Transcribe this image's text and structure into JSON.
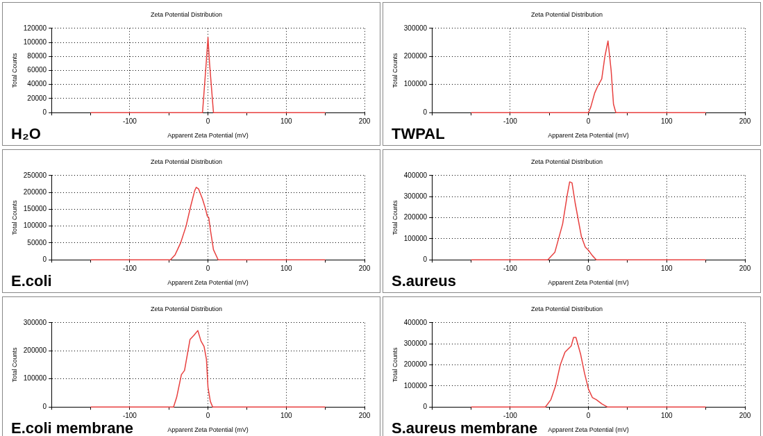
{
  "chart_data": [
    {
      "type": "line",
      "title": "Zeta Potential Distribution",
      "xlabel": "Apparent Zeta Potential (mV)",
      "ylabel": "Total Counts",
      "annotations": [
        "H₂O"
      ],
      "color": "#e8403f",
      "marker": "none",
      "grid": true,
      "x": [
        -150,
        -7,
        -2,
        0,
        2,
        7,
        150
      ],
      "values": [
        0,
        0,
        75000,
        107000,
        70000,
        0,
        0
      ],
      "xlim": [
        -200,
        200
      ],
      "xticks": [
        {
          "value": -200,
          "label": null
        },
        {
          "value": -150,
          "label": null
        },
        -100,
        {
          "value": -50,
          "label": null
        },
        0,
        {
          "value": 50,
          "label": null
        },
        100,
        {
          "value": 150,
          "label": null
        },
        200
      ],
      "ylim": [
        0,
        120000
      ],
      "yticks": [
        0,
        20000,
        40000,
        60000,
        80000,
        100000,
        120000
      ]
    },
    {
      "type": "line",
      "title": "Zeta Potential Distribution",
      "xlabel": "Apparent Zeta Potential (mV)",
      "ylabel": "Total Counts",
      "annotations": [
        "TWPAL"
      ],
      "color": "#e8403f",
      "marker": "none",
      "grid": true,
      "x": [
        -150,
        0,
        3,
        8,
        12,
        17,
        21,
        25,
        29,
        32,
        35,
        150
      ],
      "values": [
        0,
        0,
        20000,
        70000,
        95000,
        120000,
        200000,
        255000,
        150000,
        30000,
        0,
        0
      ],
      "xlim": [
        -200,
        200
      ],
      "xticks": [
        {
          "value": -200,
          "label": null
        },
        {
          "value": -150,
          "label": null
        },
        -100,
        {
          "value": -50,
          "label": null
        },
        0,
        {
          "value": 50,
          "label": null
        },
        100,
        {
          "value": 150,
          "label": null
        },
        200
      ],
      "ylim": [
        0,
        300000
      ],
      "yticks": [
        0,
        100000,
        200000,
        300000
      ]
    },
    {
      "type": "line",
      "title": "Zeta Potential Distribution",
      "xlabel": "Apparent Zeta Potential (mV)",
      "ylabel": "Total Counts",
      "annotations": [
        "E.coli"
      ],
      "color": "#e8403f",
      "marker": "none",
      "grid": true,
      "x": [
        -150,
        -48,
        -42,
        -35,
        -28,
        -22,
        -17,
        -15,
        -12,
        -7,
        -3,
        -1,
        1,
        3,
        7,
        13,
        150
      ],
      "values": [
        0,
        0,
        15000,
        50000,
        100000,
        160000,
        205000,
        215000,
        210000,
        180000,
        150000,
        130000,
        125000,
        90000,
        30000,
        0,
        0
      ],
      "xlim": [
        -200,
        200
      ],
      "xticks": [
        {
          "value": -200,
          "label": null
        },
        {
          "value": -150,
          "label": null
        },
        -100,
        {
          "value": -50,
          "label": null
        },
        0,
        {
          "value": 50,
          "label": null
        },
        100,
        {
          "value": 150,
          "label": null
        },
        200
      ],
      "ylim": [
        0,
        250000
      ],
      "yticks": [
        0,
        50000,
        100000,
        150000,
        200000,
        250000
      ]
    },
    {
      "type": "line",
      "title": "Zeta Potential Distribution",
      "xlabel": "Apparent Zeta Potential (mV)",
      "ylabel": "Total Counts",
      "annotations": [
        "S.aureus"
      ],
      "color": "#e8403f",
      "marker": "none",
      "grid": true,
      "x": [
        -150,
        -52,
        -43,
        -33,
        -27,
        -24,
        -21,
        -17,
        -9,
        -4,
        0,
        5,
        10,
        150
      ],
      "values": [
        0,
        0,
        35000,
        170000,
        310000,
        370000,
        365000,
        270000,
        110000,
        60000,
        45000,
        20000,
        0,
        0
      ],
      "xlim": [
        -200,
        200
      ],
      "xticks": [
        {
          "value": -200,
          "label": null
        },
        {
          "value": -150,
          "label": null
        },
        -100,
        {
          "value": -50,
          "label": null
        },
        0,
        {
          "value": 50,
          "label": null
        },
        100,
        {
          "value": 150,
          "label": null
        },
        200
      ],
      "ylim": [
        0,
        400000
      ],
      "yticks": [
        0,
        100000,
        200000,
        300000,
        400000
      ]
    },
    {
      "type": "line",
      "title": "Zeta Potential Distribution",
      "xlabel": "Apparent Zeta Potential (mV)",
      "ylabel": "Total Counts",
      "annotations": [
        "E.coli membrane"
      ],
      "color": "#e8403f",
      "marker": "none",
      "grid": true,
      "x": [
        -150,
        -44,
        -40,
        -34,
        -30,
        -23,
        -18,
        -13,
        -9,
        -5,
        -2,
        0,
        3,
        6,
        150
      ],
      "values": [
        0,
        0,
        35000,
        115000,
        130000,
        240000,
        255000,
        272000,
        235000,
        215000,
        170000,
        70000,
        20000,
        0,
        0
      ],
      "xlim": [
        -200,
        200
      ],
      "xticks": [
        {
          "value": -200,
          "label": null
        },
        {
          "value": -150,
          "label": null
        },
        -100,
        {
          "value": -50,
          "label": null
        },
        0,
        {
          "value": 50,
          "label": null
        },
        100,
        {
          "value": 150,
          "label": null
        },
        200
      ],
      "ylim": [
        0,
        300000
      ],
      "yticks": [
        0,
        100000,
        200000,
        300000
      ]
    },
    {
      "type": "line",
      "title": "Zeta Potential Distribution",
      "xlabel": "Apparent Zeta Potential (mV)",
      "ylabel": "Total Counts",
      "annotations": [
        "S.aureus membrane"
      ],
      "color": "#e8403f",
      "marker": "none",
      "grid": true,
      "x": [
        -150,
        -55,
        -48,
        -42,
        -36,
        -30,
        -22,
        -19,
        -16,
        -10,
        -5,
        0,
        5,
        10,
        17,
        24,
        150
      ],
      "values": [
        0,
        0,
        35000,
        100000,
        200000,
        260000,
        290000,
        330000,
        330000,
        250000,
        160000,
        85000,
        45000,
        35000,
        15000,
        0,
        0
      ],
      "xlim": [
        -200,
        200
      ],
      "xticks": [
        {
          "value": -200,
          "label": null
        },
        {
          "value": -150,
          "label": null
        },
        -100,
        {
          "value": -50,
          "label": null
        },
        0,
        {
          "value": 50,
          "label": null
        },
        100,
        {
          "value": 150,
          "label": null
        },
        200
      ],
      "ylim": [
        0,
        400000
      ],
      "yticks": [
        0,
        100000,
        200000,
        300000,
        400000
      ]
    }
  ]
}
